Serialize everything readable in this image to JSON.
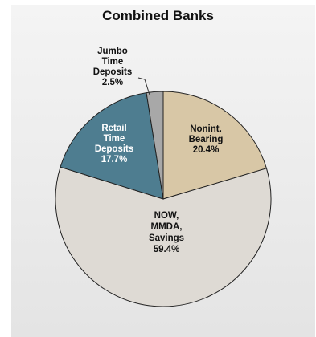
{
  "chart_data": {
    "type": "pie",
    "title": "Combined Banks",
    "slices": [
      {
        "label_lines": [
          "Nonint.",
          "Bearing"
        ],
        "value": 20.4,
        "value_label": "20.4%",
        "color": "#d8c7a6",
        "text_color": "#111111"
      },
      {
        "label_lines": [
          "NOW,",
          "MMDA,",
          "Savings"
        ],
        "value": 59.4,
        "value_label": "59.4%",
        "color": "#dedad4",
        "text_color": "#111111"
      },
      {
        "label_lines": [
          "Retail",
          "Time",
          "Deposits"
        ],
        "value": 17.7,
        "value_label": "17.7%",
        "color": "#4e7d90",
        "text_color": "#ffffff"
      },
      {
        "label_lines": [
          "Jumbo",
          "Time",
          "Deposits"
        ],
        "value": 2.5,
        "value_label": "2.5%",
        "color": "#a8a8a8",
        "text_color": "#111111"
      }
    ]
  }
}
